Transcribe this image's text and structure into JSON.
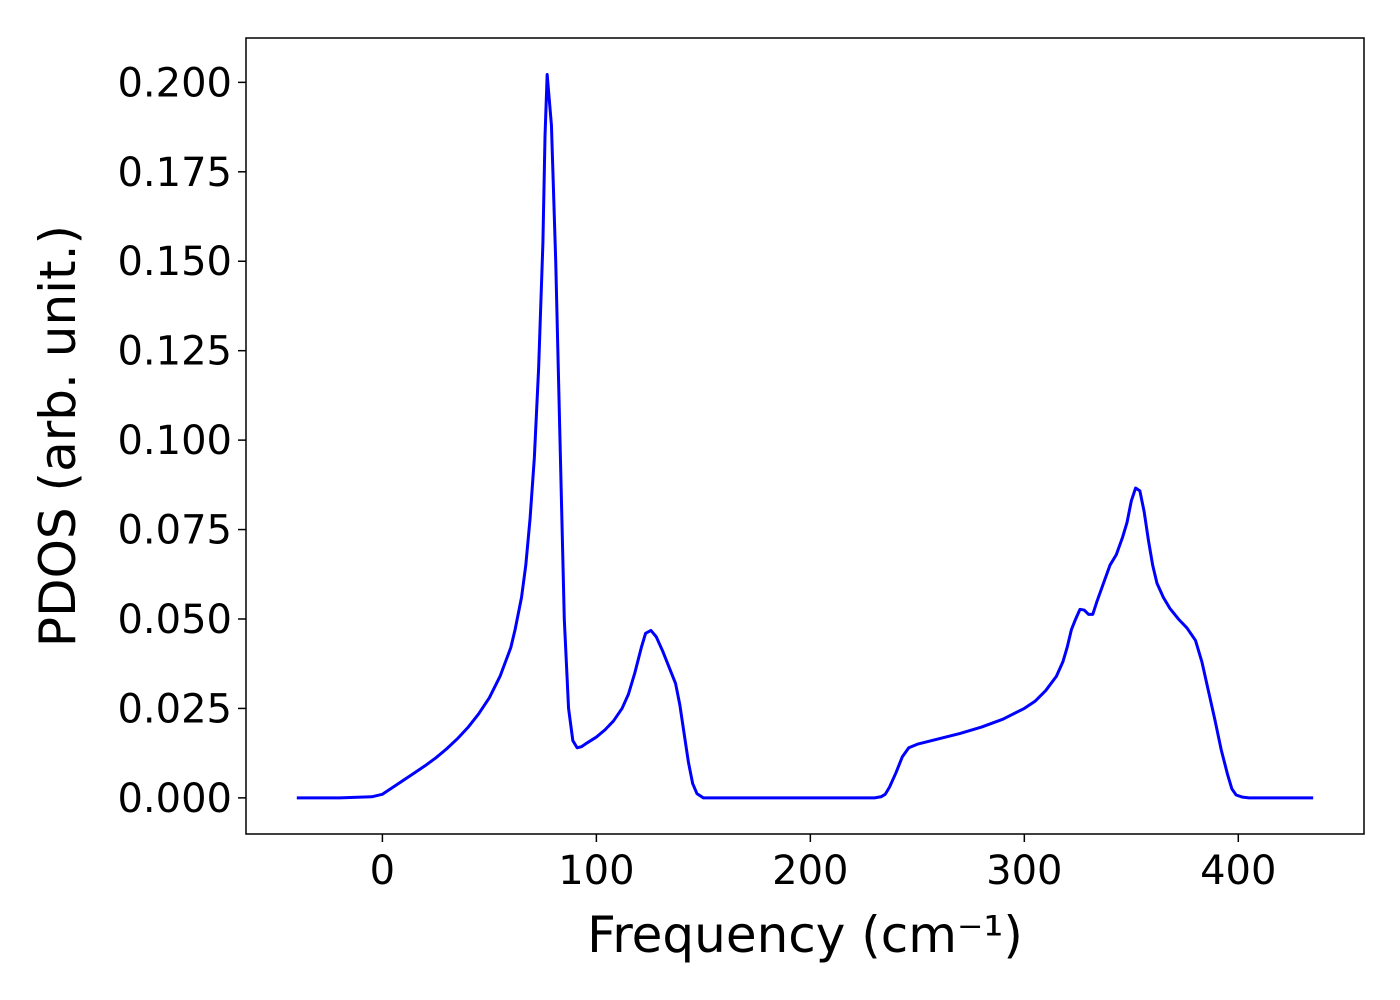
{
  "chart_data": {
    "type": "line",
    "x_label": "Frequency (cm⁻¹)",
    "y_label": "PDOS (arb. unit.)",
    "xlim": [
      -63.75,
      458.75
    ],
    "ylim": [
      -0.0101,
      0.2124
    ],
    "xticks": [
      0,
      100,
      200,
      300,
      400
    ],
    "yticks": [
      {
        "value": 0,
        "label": "0.000"
      },
      {
        "value": 0.025,
        "label": "0.025"
      },
      {
        "value": 0.05,
        "label": "0.050"
      },
      {
        "value": 0.075,
        "label": "0.075"
      },
      {
        "value": 0.1,
        "label": "0.100"
      },
      {
        "value": 0.125,
        "label": "0.125"
      },
      {
        "value": 0.15,
        "label": "0.150"
      },
      {
        "value": 0.175,
        "label": "0.175"
      },
      {
        "value": 0.2,
        "label": "0.200"
      }
    ],
    "grid": false,
    "series": [
      {
        "color": "#0000ff",
        "x": [
          -40,
          -20,
          -5,
          0,
          5,
          10,
          15,
          20,
          25,
          30,
          35,
          40,
          45,
          50,
          55,
          60,
          62,
          65,
          67,
          69,
          71,
          73,
          75,
          76,
          77,
          79,
          81,
          83,
          85,
          87,
          89,
          91,
          93,
          96,
          100,
          104,
          108,
          112,
          115,
          118,
          121,
          123,
          125.5,
          128,
          131,
          133,
          135,
          137,
          139,
          141,
          143,
          145,
          147,
          150,
          160,
          200,
          230,
          233,
          235,
          237,
          240,
          243,
          246,
          250,
          260,
          270,
          280,
          290,
          300,
          305,
          310,
          315,
          318,
          320,
          322,
          324,
          326,
          328,
          330,
          332,
          334,
          337,
          340,
          343,
          346,
          348,
          350,
          352,
          354,
          356,
          358,
          360,
          362,
          365,
          368,
          372,
          376,
          380,
          383,
          386,
          389,
          392,
          395,
          397,
          399,
          402,
          405,
          435
        ],
        "values": [
          0,
          0,
          0.0003,
          0.001,
          0.003,
          0.005,
          0.007,
          0.009,
          0.0112,
          0.0137,
          0.0165,
          0.0197,
          0.0235,
          0.028,
          0.034,
          0.042,
          0.047,
          0.056,
          0.065,
          0.078,
          0.095,
          0.12,
          0.155,
          0.185,
          0.2022,
          0.188,
          0.15,
          0.1,
          0.05,
          0.025,
          0.016,
          0.014,
          0.0143,
          0.0155,
          0.017,
          0.019,
          0.0215,
          0.025,
          0.029,
          0.035,
          0.042,
          0.046,
          0.0468,
          0.045,
          0.041,
          0.038,
          0.035,
          0.032,
          0.026,
          0.018,
          0.01,
          0.004,
          0.0012,
          0,
          0,
          0,
          0,
          0.0003,
          0.001,
          0.003,
          0.007,
          0.0115,
          0.014,
          0.015,
          0.0165,
          0.018,
          0.0198,
          0.022,
          0.025,
          0.027,
          0.03,
          0.034,
          0.038,
          0.042,
          0.047,
          0.05,
          0.0527,
          0.0525,
          0.0513,
          0.0513,
          0.055,
          0.06,
          0.065,
          0.068,
          0.073,
          0.077,
          0.083,
          0.0866,
          0.0858,
          0.08,
          0.072,
          0.065,
          0.06,
          0.056,
          0.053,
          0.05,
          0.0475,
          0.044,
          0.038,
          0.03,
          0.022,
          0.0135,
          0.0065,
          0.0025,
          0.0008,
          0.0002,
          0,
          0
        ]
      }
    ]
  }
}
